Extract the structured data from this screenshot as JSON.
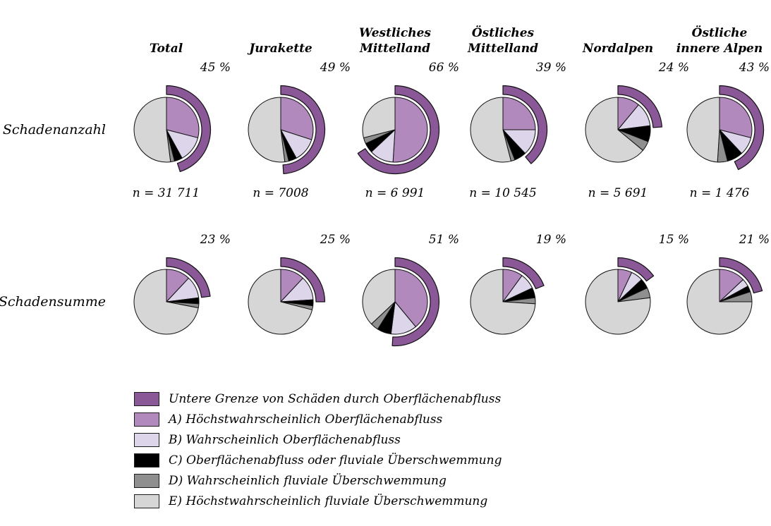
{
  "chart_data": {
    "type": "pie",
    "description": "Two rows of pie charts per region; outer purple arc shows lower-bound share of surface-runoff damages; slices A-E classify damages",
    "columns": [
      "Total",
      "Jurakette",
      "Westliches\nMittelland",
      "Östliches\nMittelland",
      "Nordalpen",
      "Östliche\ninnere Alpen"
    ],
    "slice_order": [
      "A",
      "B",
      "C",
      "D",
      "E"
    ],
    "colors": {
      "untere_grenze": "#8a5797",
      "A": "#b189bd",
      "B": "#ddd5ea",
      "C": "#000000",
      "D": "#8f8f8f",
      "E": "#d6d6d6"
    },
    "stroke_color": "#111111",
    "rows": [
      {
        "label": "Schadenanzahl",
        "pies": [
          {
            "column": "Total",
            "outer_arc_pct": 45,
            "pct_label": "45 %",
            "n_label": "n = 31 711",
            "slices": {
              "A": 29,
              "B": 13,
              "C": 4,
              "D": 2,
              "E": 52
            }
          },
          {
            "column": "Jurakette",
            "outer_arc_pct": 49,
            "pct_label": "49 %",
            "n_label": "n = 7008",
            "slices": {
              "A": 30,
              "B": 12,
              "C": 4,
              "D": 2,
              "E": 52
            }
          },
          {
            "column": "Westliches Mittelland",
            "outer_arc_pct": 66,
            "pct_label": "66 %",
            "n_label": "n = 6 991",
            "slices": {
              "A": 51,
              "B": 12,
              "C": 5,
              "D": 3,
              "E": 29
            }
          },
          {
            "column": "Östliches Mittelland",
            "outer_arc_pct": 39,
            "pct_label": "39 %",
            "n_label": "n = 10 545",
            "slices": {
              "A": 25,
              "B": 13,
              "C": 6,
              "D": 2,
              "E": 54
            }
          },
          {
            "column": "Nordalpen",
            "outer_arc_pct": 24,
            "pct_label": "24 %",
            "n_label": "n = 5 691",
            "slices": {
              "A": 11,
              "B": 12,
              "C": 8,
              "D": 5,
              "E": 64
            }
          },
          {
            "column": "Östliche innere Alpen",
            "outer_arc_pct": 43,
            "pct_label": "43 %",
            "n_label": "n = 1 476",
            "slices": {
              "A": 29,
              "B": 9,
              "C": 8,
              "D": 5,
              "E": 49
            }
          }
        ]
      },
      {
        "label": "Schadensumme",
        "pies": [
          {
            "column": "Total",
            "outer_arc_pct": 23,
            "pct_label": "23 %",
            "slices": {
              "A": 12,
              "B": 11,
              "C": 3,
              "D": 2,
              "E": 72
            }
          },
          {
            "column": "Jurakette",
            "outer_arc_pct": 25,
            "pct_label": "25 %",
            "slices": {
              "A": 12,
              "B": 12,
              "C": 3,
              "D": 2,
              "E": 71
            }
          },
          {
            "column": "Westliches Mittelland",
            "outer_arc_pct": 51,
            "pct_label": "51 %",
            "slices": {
              "A": 39,
              "B": 13,
              "C": 7,
              "D": 4,
              "E": 37
            }
          },
          {
            "column": "Östliches Mittelland",
            "outer_arc_pct": 19,
            "pct_label": "19 %",
            "slices": {
              "A": 10,
              "B": 8,
              "C": 5,
              "D": 3,
              "E": 74
            }
          },
          {
            "column": "Nordalpen",
            "outer_arc_pct": 15,
            "pct_label": "15 %",
            "slices": {
              "A": 7,
              "B": 6,
              "C": 5,
              "D": 5,
              "E": 77
            }
          },
          {
            "column": "Östliche innere Alpen",
            "outer_arc_pct": 21,
            "pct_label": "21 %",
            "slices": {
              "A": 13,
              "B": 4,
              "C": 3,
              "D": 5,
              "E": 75
            }
          }
        ]
      }
    ],
    "legend": [
      {
        "key": "untere_grenze",
        "label": "Untere Grenze von Schäden durch Oberflächenabfluss"
      },
      {
        "key": "A",
        "label": "A) Höchstwahrscheinlich Oberflächenabfluss"
      },
      {
        "key": "B",
        "label": "B) Wahrscheinlich Oberflächenabfluss"
      },
      {
        "key": "C",
        "label": "C) Oberflächenabfluss oder fluviale Überschwemmung"
      },
      {
        "key": "D",
        "label": "D) Wahrscheinlich fluviale Überschwemmung"
      },
      {
        "key": "E",
        "label": "E) Höchstwahrscheinlich fluviale Überschwemmung"
      }
    ]
  }
}
